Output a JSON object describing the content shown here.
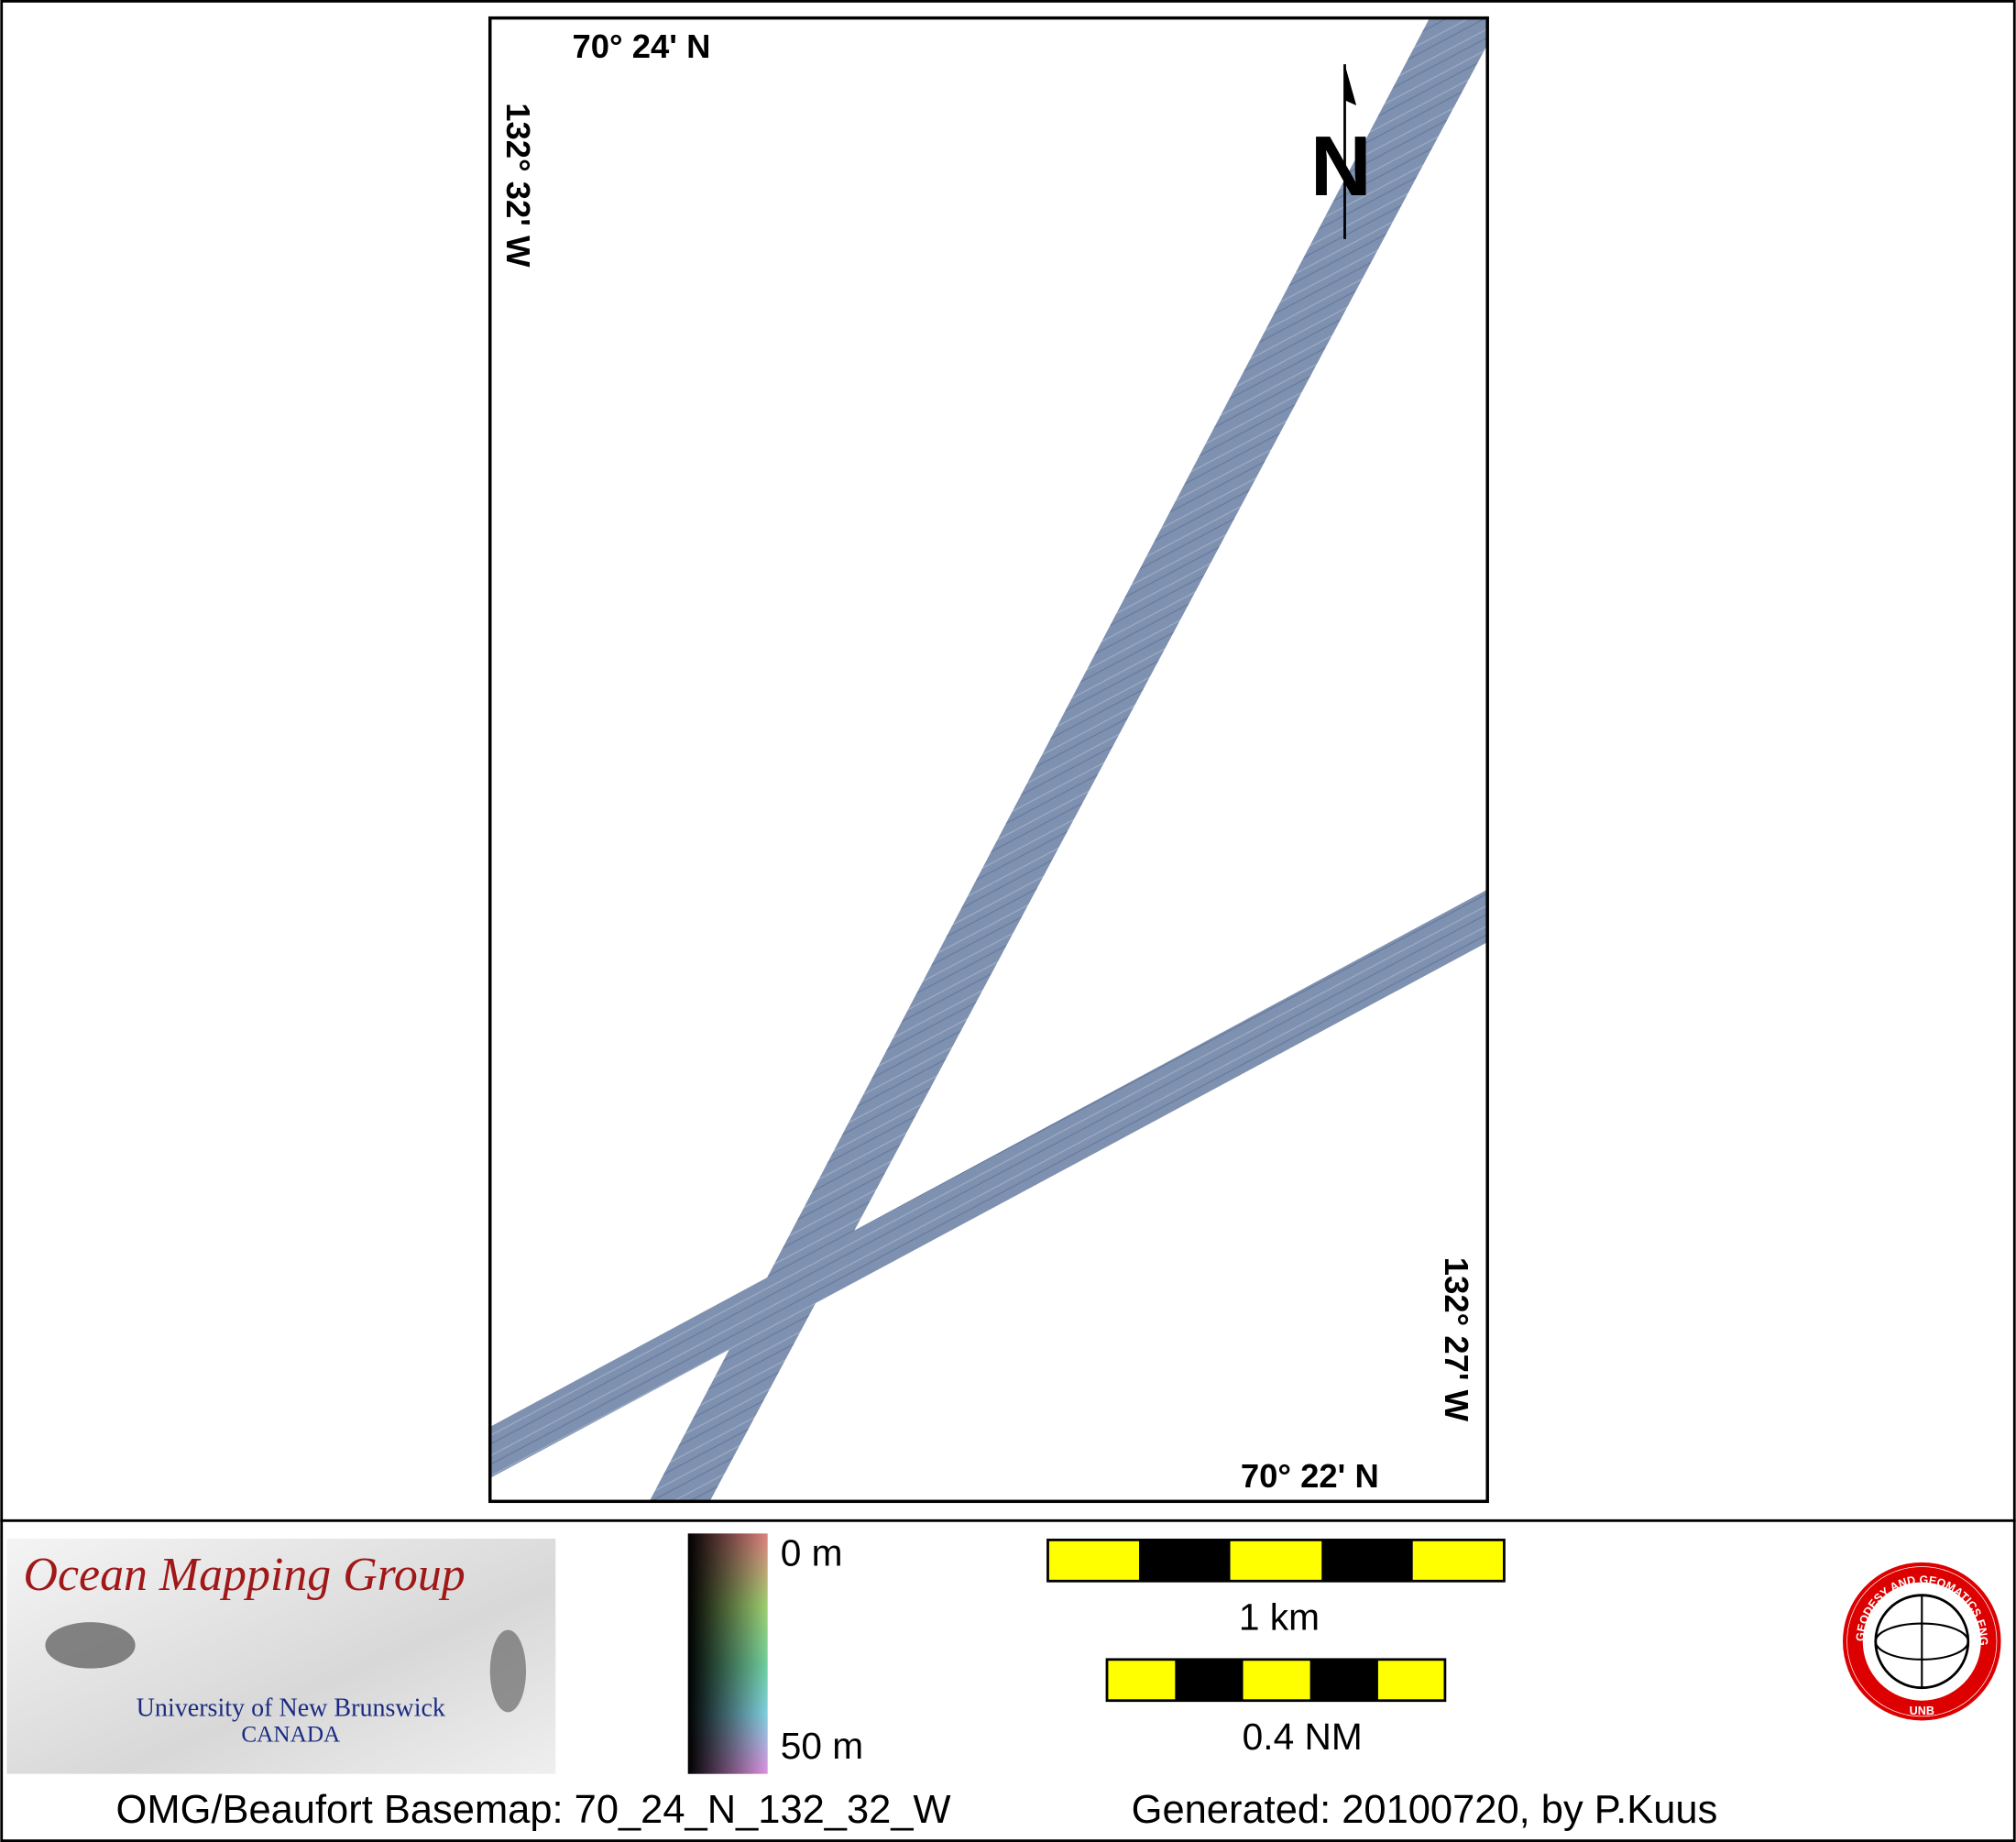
{
  "map": {
    "labels": {
      "top_lat": "70° 24' N",
      "bottom_lat": "70° 22' N",
      "left_lon": "132° 32' W",
      "right_lon": "132° 27' W",
      "north": "N"
    },
    "colorbar": {
      "top": "0 m",
      "bottom": "50 m"
    },
    "scale_bars": [
      "1 km",
      "0.4 NM"
    ],
    "logo": {
      "title": "Ocean Mapping Group",
      "university": "University of New Brunswick",
      "country": "CANADA"
    },
    "seal": {
      "ring": "GEODESY AND GEOMATICS ENGINEERING",
      "center": "UNB"
    },
    "footer": {
      "basemap": "OMG/Beaufort Basemap: 70_24_N_132_32_W",
      "generated": "Generated: 20100720, by P.Kuus"
    }
  }
}
